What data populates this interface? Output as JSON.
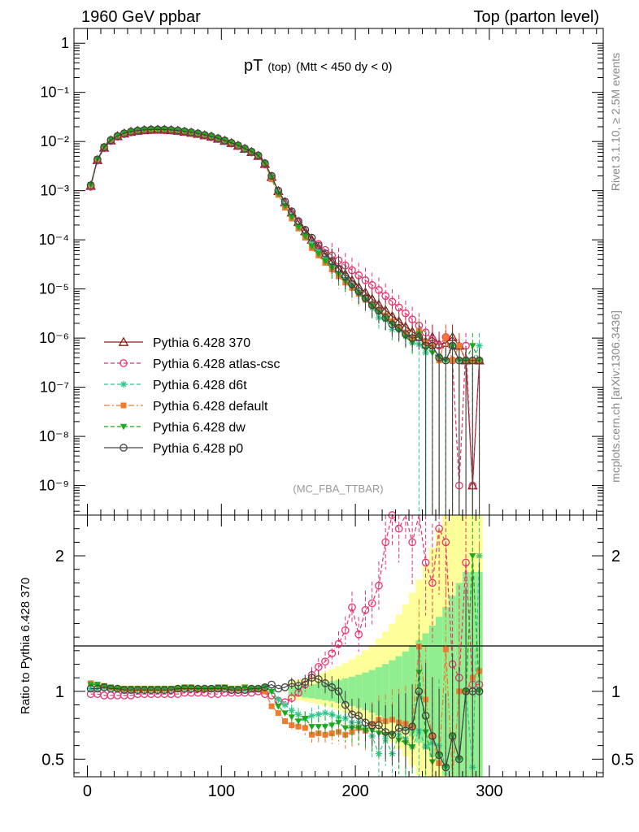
{
  "header": {
    "left": "1960 GeV ppbar",
    "right": "Top (parton level)"
  },
  "side_labels": {
    "rivet": "Rivet 3.1.10, ≥ 2.5M events",
    "mcplots": "mcplots.cern.ch [arXiv:1306.3436]"
  },
  "chart_data": [
    {
      "type": "line",
      "panel": "main",
      "title": "pT",
      "title_sub": "(top)",
      "title_cut": "(Mtt < 450 dy < 0)",
      "watermark": "(MC_FBA_TTBAR)",
      "yscale": "log",
      "xlim": [
        -10,
        385
      ],
      "ylim": [
        2.5e-10,
        2
      ],
      "y_tick_labels": [
        "1",
        "10⁻¹",
        "10⁻²",
        "10⁻³",
        "10⁻⁴",
        "10⁻⁵",
        "10⁻⁶",
        "10⁻⁷",
        "10⁻⁸",
        "10⁻⁹"
      ],
      "legend_position": "bottom-left",
      "x": [
        2.5,
        7.5,
        12.5,
        17.5,
        22.5,
        27.5,
        32.5,
        37.5,
        42.5,
        47.5,
        52.5,
        57.5,
        62.5,
        67.5,
        72.5,
        77.5,
        82.5,
        87.5,
        92.5,
        97.5,
        102.5,
        107.5,
        112.5,
        117.5,
        122.5,
        127.5,
        132.5,
        137.5,
        142.5,
        147.5,
        152.5,
        157.5,
        162.5,
        167.5,
        172.5,
        177.5,
        182.5,
        187.5,
        192.5,
        197.5,
        202.5,
        207.5,
        212.5,
        217.5,
        222.5,
        227.5,
        232.5,
        237.5,
        242.5,
        247.5,
        252.5,
        257.5,
        262.5,
        267.5,
        272.5,
        277.5,
        282.5,
        287.5,
        292.5
      ],
      "series": [
        {
          "name": "Pythia 6.428 370",
          "color": "#8b1a1a",
          "marker": "triangle-open",
          "dash": "solid",
          "values": [
            0.00125,
            0.0042,
            0.0075,
            0.0105,
            0.0128,
            0.0145,
            0.0157,
            0.0165,
            0.017,
            0.0173,
            0.0174,
            0.0173,
            0.017,
            0.0165,
            0.0158,
            0.0151,
            0.0143,
            0.0134,
            0.0125,
            0.0114,
            0.0103,
            0.0093,
            0.0082,
            0.0071,
            0.0061,
            0.0051,
            0.0035,
            0.0019,
            0.00098,
            0.00058,
            0.00036,
            0.00023,
            0.00015,
            0.0001,
            7e-05,
            5e-05,
            3.6e-05,
            2.6e-05,
            2e-05,
            1.5e-05,
            1.1e-05,
            8.5e-06,
            6.3e-06,
            4.8e-06,
            3.7e-06,
            2.8e-06,
            2.2e-06,
            1.7e-06,
            1.35e-06,
            1.05e-06,
            8.5e-07,
            1.05e-06,
            7.5e-07,
            8e-07,
            1.05e-06,
            7e-07,
            3.5e-07,
            1e-09,
            3.5e-07
          ]
        },
        {
          "name": "Pythia 6.428 atlas-csc",
          "color": "#e8336e",
          "marker": "circle-open",
          "dash": "dashed",
          "values": [
            0.0012,
            0.0041,
            0.0073,
            0.0102,
            0.0125,
            0.0141,
            0.0153,
            0.0162,
            0.0167,
            0.017,
            0.0171,
            0.017,
            0.0167,
            0.0162,
            0.0156,
            0.0149,
            0.0141,
            0.0132,
            0.0122,
            0.0112,
            0.0102,
            0.0091,
            0.0081,
            0.007,
            0.006,
            0.0051,
            0.0034,
            0.0018,
            0.0009,
            0.00053,
            0.00034,
            0.00023,
            0.00016,
            0.00011,
            8.2e-05,
            6.2e-05,
            4.8e-05,
            3.8e-05,
            3e-05,
            2.4e-05,
            1.9e-05,
            1.5e-05,
            1.2e-05,
            9.5e-06,
            7.2e-06,
            5.5e-06,
            4.2e-06,
            3.2e-06,
            2.4e-06,
            1.8e-06,
            1.3e-06,
            9.5e-07,
            7e-07,
            1.05e-06,
            3.5e-07,
            1e-09,
            7e-07,
            1e-09,
            3.5e-07
          ]
        },
        {
          "name": "Pythia 6.428 d6t",
          "color": "#2fc88c",
          "marker": "star",
          "dash": "dashed",
          "values": [
            0.00128,
            0.0043,
            0.0077,
            0.0107,
            0.013,
            0.0147,
            0.0159,
            0.0167,
            0.0172,
            0.0175,
            0.0176,
            0.0175,
            0.0172,
            0.0168,
            0.0161,
            0.0154,
            0.0146,
            0.0136,
            0.0127,
            0.0116,
            0.0105,
            0.0094,
            0.0083,
            0.0072,
            0.0062,
            0.0052,
            0.0036,
            0.0019,
            0.00092,
            0.00052,
            0.00031,
            0.00019,
            0.00012,
            8.2e-05,
            5.8e-05,
            4.2e-05,
            3e-05,
            2.1e-05,
            1.6e-05,
            1.15e-05,
            8.5e-06,
            6.2e-06,
            4.2e-06,
            2.6e-06,
            2.4e-06,
            1.5e-06,
            1.5e-06,
            1.1e-06,
            8e-07,
            7.5e-07,
            5e-07,
            6.5e-07,
            4.5e-07,
            3.5e-07,
            7e-07,
            3.5e-07,
            3.5e-07,
            3.5e-07,
            7e-07
          ]
        },
        {
          "name": "Pythia 6.428 default",
          "color": "#ee7b2e",
          "marker": "square",
          "dash": "dashdot",
          "values": [
            0.00133,
            0.0044,
            0.0078,
            0.0108,
            0.0131,
            0.0148,
            0.016,
            0.0168,
            0.0173,
            0.0176,
            0.0177,
            0.0176,
            0.0173,
            0.0168,
            0.0162,
            0.0155,
            0.0146,
            0.0137,
            0.0127,
            0.0117,
            0.0106,
            0.0095,
            0.0084,
            0.0073,
            0.0062,
            0.0052,
            0.0035,
            0.0017,
            0.00082,
            0.00045,
            0.00027,
            0.00017,
            0.00011,
            6.8e-05,
            4.8e-05,
            3.4e-05,
            2.5e-05,
            1.8e-05,
            1.35e-05,
            1.05e-05,
            8e-06,
            6e-06,
            4.8e-06,
            3.8e-06,
            2.9e-06,
            2.2e-06,
            1.7e-06,
            1.3e-06,
            1e-06,
            1.4e-06,
            8e-07,
            7e-07,
            3.5e-07,
            1.05e-06,
            3.5e-07,
            7e-07,
            3.5e-07,
            3.5e-07,
            3.5e-07
          ]
        },
        {
          "name": "Pythia 6.428 dw",
          "color": "#1aaa1a",
          "marker": "triangle-down",
          "dash": "dashed",
          "values": [
            0.00131,
            0.0044,
            0.0078,
            0.0108,
            0.0131,
            0.0148,
            0.016,
            0.0168,
            0.0173,
            0.0176,
            0.0177,
            0.0176,
            0.0173,
            0.0168,
            0.0162,
            0.0155,
            0.0146,
            0.0137,
            0.0127,
            0.0117,
            0.0106,
            0.0095,
            0.0084,
            0.0073,
            0.0062,
            0.0052,
            0.0036,
            0.0019,
            0.00087,
            0.00049,
            0.00029,
            0.00018,
            0.00012,
            7.4e-05,
            5.2e-05,
            3.7e-05,
            2.7e-05,
            2e-05,
            1.45e-05,
            1.1e-05,
            8e-06,
            6e-06,
            4.5e-06,
            3.3e-06,
            2.5e-06,
            1.9e-06,
            1.4e-06,
            1.05e-06,
            8e-07,
            1.2e-06,
            6e-07,
            5e-07,
            4e-07,
            3.5e-07,
            7e-07,
            3.5e-07,
            3.5e-07,
            7e-07,
            3.5e-07
          ]
        },
        {
          "name": "Pythia 6.428 p0",
          "color": "#444444",
          "marker": "circle-open",
          "dash": "solid",
          "values": [
            0.00128,
            0.0043,
            0.0077,
            0.0107,
            0.013,
            0.0147,
            0.0159,
            0.0167,
            0.0172,
            0.0175,
            0.0176,
            0.0175,
            0.0172,
            0.0168,
            0.0161,
            0.0154,
            0.0146,
            0.0136,
            0.0127,
            0.0116,
            0.0105,
            0.0094,
            0.0083,
            0.0072,
            0.0062,
            0.0052,
            0.0036,
            0.002,
            0.001,
            0.0006,
            0.00038,
            0.00024,
            0.00016,
            0.00011,
            7.6e-05,
            5.3e-05,
            3.7e-05,
            2.6e-05,
            1.8e-05,
            1.25e-05,
            9e-06,
            6.5e-06,
            4.7e-06,
            3.6e-06,
            2.6e-06,
            1.9e-06,
            1.6e-06,
            1.2e-06,
            1e-06,
            1.05e-06,
            7e-07,
            7e-07,
            4e-07,
            3.5e-07,
            7e-07,
            3.5e-07,
            3.5e-07,
            3.5e-07,
            3.5e-07
          ]
        }
      ]
    },
    {
      "type": "line",
      "panel": "ratio",
      "ylabel": "Ratio to Pythia 6.428 370",
      "xlim": [
        -10,
        385
      ],
      "ylim": [
        0.37,
        2.3
      ],
      "x_ticks": [
        0,
        100,
        200,
        300
      ],
      "x_tick_labels": [
        "0",
        "100",
        "200",
        "300"
      ],
      "y_ticks": [
        0.5,
        1,
        2
      ],
      "y_tick_labels": [
        "0.5",
        "1",
        "2"
      ],
      "reference": 1,
      "x": [
        2.5,
        7.5,
        12.5,
        17.5,
        22.5,
        27.5,
        32.5,
        37.5,
        42.5,
        47.5,
        52.5,
        57.5,
        62.5,
        67.5,
        72.5,
        77.5,
        82.5,
        87.5,
        92.5,
        97.5,
        102.5,
        107.5,
        112.5,
        117.5,
        122.5,
        127.5,
        132.5,
        137.5,
        142.5,
        147.5,
        152.5,
        157.5,
        162.5,
        167.5,
        172.5,
        177.5,
        182.5,
        187.5,
        192.5,
        197.5,
        202.5,
        207.5,
        212.5,
        217.5,
        222.5,
        227.5,
        232.5,
        237.5,
        242.5,
        247.5,
        252.5,
        257.5,
        262.5,
        267.5,
        272.5,
        277.5,
        282.5,
        287.5,
        292.5
      ],
      "series": [
        {
          "name": "Pythia 6.428 atlas-csc",
          "values": [
            0.98,
            0.98,
            0.97,
            0.97,
            0.97,
            0.97,
            0.97,
            0.98,
            0.98,
            0.98,
            0.98,
            0.98,
            0.98,
            0.98,
            0.99,
            0.99,
            0.99,
            0.99,
            0.98,
            0.98,
            0.99,
            0.99,
            0.99,
            0.99,
            0.99,
            1.0,
            0.98,
            0.97,
            0.93,
            0.92,
            0.95,
            0.99,
            1.05,
            1.12,
            1.18,
            1.22,
            1.28,
            1.35,
            1.45,
            1.62,
            1.42,
            1.6,
            1.65,
            1.78,
            2.1,
            2.3,
            2.2,
            2.4,
            2.1,
            2.5,
            1.95,
            1.8,
            2.2,
            2.1,
            1.2,
            1.1,
            1.95,
            1.05,
            1.05
          ]
        },
        {
          "name": "Pythia 6.428 d6t",
          "values": [
            1.02,
            1.02,
            1.03,
            1.02,
            1.02,
            1.01,
            1.01,
            1.01,
            1.01,
            1.01,
            1.01,
            1.01,
            1.01,
            1.02,
            1.02,
            1.02,
            1.02,
            1.02,
            1.02,
            1.02,
            1.02,
            1.01,
            1.01,
            1.01,
            1.02,
            1.02,
            1.03,
            1.0,
            0.94,
            0.9,
            0.86,
            0.83,
            0.8,
            0.82,
            0.83,
            0.84,
            0.83,
            0.81,
            0.8,
            0.77,
            0.77,
            0.73,
            0.67,
            0.54,
            0.65,
            0.54,
            0.68,
            0.65,
            0.59,
            0.71,
            0.59,
            0.62,
            0.6,
            0.44,
            0.67,
            0.5,
            1.0,
            0.44,
            2.0
          ]
        },
        {
          "name": "Pythia 6.428 default",
          "values": [
            1.06,
            1.05,
            1.04,
            1.03,
            1.02,
            1.02,
            1.02,
            1.02,
            1.02,
            1.02,
            1.02,
            1.02,
            1.02,
            1.02,
            1.03,
            1.03,
            1.02,
            1.02,
            1.02,
            1.03,
            1.03,
            1.02,
            1.02,
            1.03,
            1.02,
            1.02,
            1.0,
            0.89,
            0.84,
            0.78,
            0.75,
            0.74,
            0.73,
            0.68,
            0.69,
            0.68,
            0.69,
            0.7,
            0.68,
            0.7,
            0.73,
            0.71,
            0.76,
            0.79,
            0.78,
            0.79,
            0.77,
            0.76,
            0.74,
            1.33,
            0.94,
            0.67,
            0.47,
            1.31,
            0.33,
            1.0,
            1.0,
            1.1,
            1.15
          ]
        },
        {
          "name": "Pythia 6.428 dw",
          "values": [
            1.05,
            1.05,
            1.04,
            1.03,
            1.02,
            1.02,
            1.02,
            1.02,
            1.02,
            1.02,
            1.02,
            1.02,
            1.02,
            1.02,
            1.03,
            1.03,
            1.02,
            1.02,
            1.02,
            1.03,
            1.03,
            1.02,
            1.02,
            1.03,
            1.02,
            1.02,
            1.03,
            1.0,
            0.89,
            0.84,
            0.81,
            0.78,
            0.8,
            0.74,
            0.74,
            0.74,
            0.75,
            0.77,
            0.73,
            0.73,
            0.73,
            0.71,
            0.71,
            0.69,
            0.68,
            0.68,
            0.64,
            0.62,
            0.59,
            1.14,
            0.7,
            0.48,
            0.53,
            0.44,
            0.67,
            0.5,
            1.0,
            2.0,
            1.0
          ]
        },
        {
          "name": "Pythia 6.428 p0",
          "values": [
            1.02,
            1.02,
            1.03,
            1.02,
            1.02,
            1.01,
            1.01,
            1.01,
            1.01,
            1.01,
            1.01,
            1.01,
            1.01,
            1.02,
            1.02,
            1.02,
            1.02,
            1.02,
            1.02,
            1.02,
            1.02,
            1.01,
            1.01,
            1.01,
            1.02,
            1.02,
            1.03,
            1.05,
            1.02,
            1.03,
            1.06,
            1.04,
            1.07,
            1.1,
            1.09,
            1.06,
            1.03,
            1.0,
            0.9,
            0.83,
            0.82,
            0.77,
            0.75,
            0.75,
            0.7,
            0.68,
            0.73,
            0.71,
            0.74,
            1.0,
            0.82,
            0.67,
            0.53,
            0.44,
            0.67,
            0.5,
            1.0,
            1.0,
            1.0
          ]
        }
      ]
    }
  ]
}
